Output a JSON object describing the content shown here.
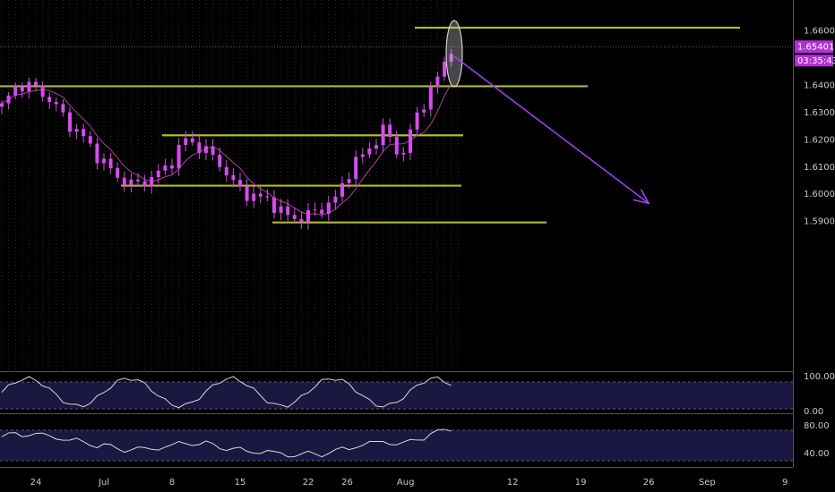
{
  "colors": {
    "background": "#000000",
    "candle": "#d64bf0",
    "ma": "#b0409a",
    "level": "#b5b82e",
    "arrow": "#9b3ff0",
    "grid": "#2a2a2a",
    "panel_fill": "#1a1740",
    "osc_line": "#d8d8d8",
    "badge": "#b42fd6",
    "marker": "#cfcfcf"
  },
  "chart_data": {
    "type": "candlestick",
    "title": "",
    "ylim": [
      1.585,
      1.665
    ],
    "y_ticks": [
      "1.66000",
      "1.65000",
      "1.64000",
      "1.63000",
      "1.62000",
      "1.61000",
      "1.60000",
      "1.59000"
    ],
    "x_ticks": [
      "24",
      "Jul",
      "8",
      "15",
      "22",
      "26",
      "Aug",
      "12",
      "19",
      "26",
      "Sep",
      "9"
    ],
    "last_price": "1.65401",
    "countdown": "03:35:43",
    "horizontal_levels": [
      1.661,
      1.6395,
      1.6215,
      1.603,
      1.5895
    ],
    "arrow": {
      "from": {
        "date": "Aug 6",
        "price": 1.6505
      },
      "to": {
        "date": "Aug 26",
        "price": 1.5965
      }
    },
    "closes_sample": [
      1.632,
      1.6405,
      1.639,
      1.634,
      1.626,
      1.62,
      1.612,
      1.606,
      1.603,
      1.606,
      1.61,
      1.62,
      1.617,
      1.612,
      1.603,
      1.599,
      1.598,
      1.592,
      1.591,
      1.594,
      1.5975,
      1.61,
      1.616,
      1.624,
      1.613,
      1.63,
      1.64,
      1.654
    ],
    "oscillator1": {
      "ticks": [
        "100.00",
        "0.00"
      ],
      "range": [
        0,
        100
      ],
      "band": [
        20,
        80
      ]
    },
    "oscillator2": {
      "ticks": [
        "80.00",
        "40.00"
      ],
      "range": [
        20,
        90
      ],
      "band": [
        30,
        70
      ]
    }
  }
}
